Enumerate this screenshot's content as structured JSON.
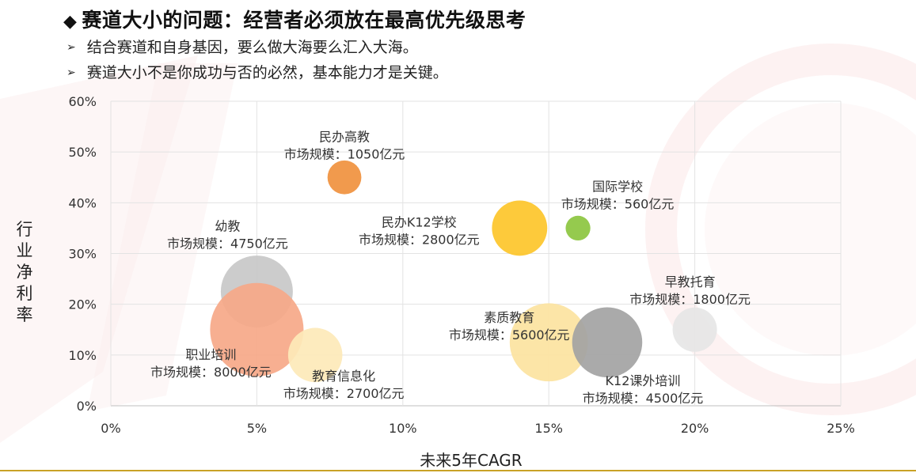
{
  "header": {
    "title": "赛道大小的问题：经营者必须放在最高优先级思考",
    "bullets": [
      "结合赛道和自身基因，要么做大海要么汇入大海。",
      "赛道大小不是你成功与否的必然，基本能力才是关键。"
    ]
  },
  "chart_data": {
    "type": "bubble",
    "xlabel": "未来5年CAGR",
    "ylabel": "行业净利率",
    "xlim": [
      0,
      25
    ],
    "ylim": [
      0,
      60
    ],
    "x_ticks": [
      "0%",
      "5%",
      "10%",
      "15%",
      "20%",
      "25%"
    ],
    "y_ticks": [
      "0%",
      "10%",
      "20%",
      "30%",
      "40%",
      "50%",
      "60%"
    ],
    "grid": true,
    "series": [
      {
        "name": "民办高教",
        "size_label": "市场规模：1050亿元",
        "x": 8,
        "y": 45,
        "size": 1050,
        "color": "#f0913e"
      },
      {
        "name": "国际学校",
        "size_label": "市场规模：560亿元",
        "x": 16,
        "y": 35,
        "size": 560,
        "color": "#8cc63f"
      },
      {
        "name": "民办K12学校",
        "size_label": "市场规模：2800亿元",
        "x": 14,
        "y": 35,
        "size": 2800,
        "color": "#fdc52a"
      },
      {
        "name": "幼教",
        "size_label": "市场规模：4750亿元",
        "x": 5,
        "y": 22.5,
        "size": 4750,
        "color": "#c8c8c8"
      },
      {
        "name": "早教托育",
        "size_label": "市场规模：1800亿元",
        "x": 20,
        "y": 15,
        "size": 1800,
        "color": "#e6e6e6"
      },
      {
        "name": "职业培训",
        "size_label": "市场规模：8000亿元",
        "x": 5,
        "y": 15,
        "size": 8000,
        "color": "#f6a888"
      },
      {
        "name": "教育信息化",
        "size_label": "市场规模：2700亿元",
        "x": 7,
        "y": 10,
        "size": 2700,
        "color": "#fde9b8"
      },
      {
        "name": "素质教育",
        "size_label": "市场规模：5600亿元",
        "x": 15,
        "y": 12.5,
        "size": 5600,
        "color": "#fce3a0"
      },
      {
        "name": "K12课外培训",
        "size_label": "市场规模：4500亿元",
        "x": 17,
        "y": 12.5,
        "size": 4500,
        "color": "#a3a3a3"
      }
    ]
  }
}
